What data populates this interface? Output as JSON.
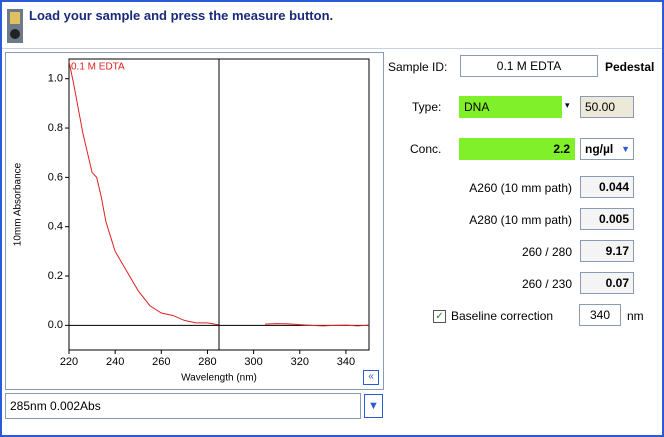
{
  "header": {
    "title": "Load your sample and press the measure button."
  },
  "chart_data": {
    "type": "line",
    "series_label": "0.1 M EDTA",
    "x_label": "Wavelength (nm)",
    "y_label": "10mm Absorbance",
    "color": "#e02020",
    "x": [
      220,
      222,
      224,
      226,
      228,
      230,
      232,
      234,
      236,
      238,
      240,
      245,
      250,
      255,
      260,
      265,
      270,
      275,
      280,
      285,
      290,
      300,
      305,
      310,
      315,
      320,
      325,
      330,
      335,
      340,
      345,
      350
    ],
    "values": [
      1.07,
      0.98,
      0.88,
      0.78,
      0.7,
      0.62,
      0.6,
      0.52,
      0.42,
      0.36,
      0.3,
      0.22,
      0.14,
      0.08,
      0.05,
      0.04,
      0.02,
      0.01,
      0.01,
      0.002,
      null,
      null,
      0.005,
      0.007,
      0.006,
      0.003,
      0.0,
      -0.002,
      0.0,
      0.001,
      -0.002,
      0.001
    ],
    "xlim": [
      220,
      350
    ],
    "ylim": [
      -0.1,
      1.08
    ],
    "xticks": [
      220,
      240,
      260,
      280,
      300,
      320,
      340
    ],
    "yticks": [
      {
        "value": 0,
        "label": "0.0"
      },
      {
        "value": 0.2,
        "label": "0.2"
      },
      {
        "value": 0.4,
        "label": "0.4"
      },
      {
        "value": 0.6,
        "label": "0.6"
      },
      {
        "value": 0.8,
        "label": "0.8"
      },
      {
        "value": 1,
        "label": "1.0"
      }
    ],
    "cursor_x": 285
  },
  "status": "285nm 0.002Abs",
  "form": {
    "sample_id_label": "Sample ID:",
    "sample_id": "0.1 M EDTA",
    "pedestal": "Pedestal",
    "type_label": "Type:",
    "type": "DNA",
    "type_factor": "50.00",
    "conc_label": "Conc.",
    "conc": "2.2",
    "conc_unit": "ng/µl",
    "rows": [
      {
        "label": "A260 (10 mm path)",
        "value": "0.044"
      },
      {
        "label": "A280 (10 mm path)",
        "value": "0.005"
      },
      {
        "label": "260 / 280",
        "value": "9.17"
      },
      {
        "label": "260 / 230",
        "value": "0.07"
      }
    ],
    "baseline_label": "Baseline correction",
    "baseline_value": "340",
    "baseline_unit": "nm"
  }
}
